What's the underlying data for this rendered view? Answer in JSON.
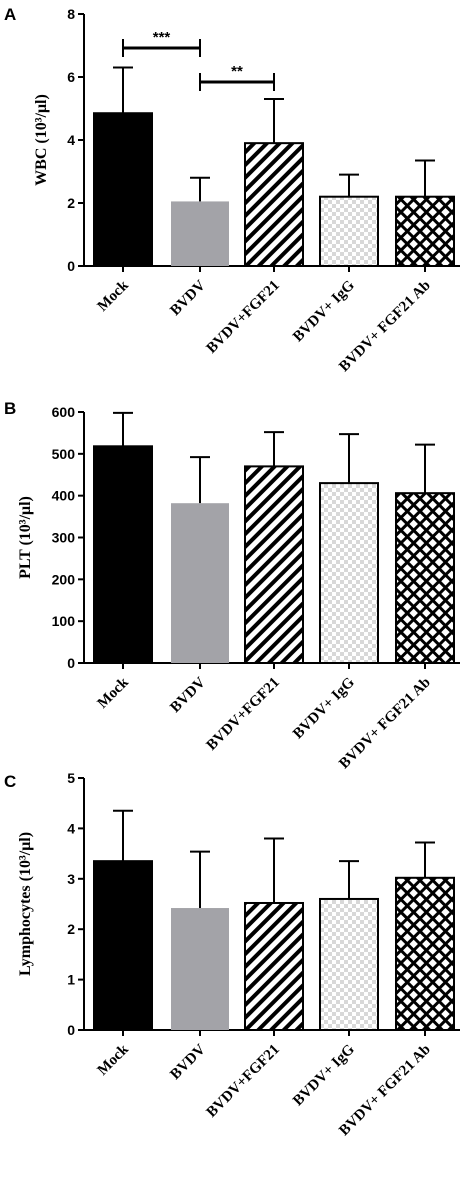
{
  "chart_data": [
    {
      "type": "bar",
      "panel": "A",
      "categories": [
        "Mock",
        "BVDV",
        "BVDV+FGF21",
        "BVDV+ IgG",
        "BVDV+ FGF21 Ab"
      ],
      "values": [
        4.85,
        2.05,
        3.9,
        2.2,
        2.2
      ],
      "errors": [
        1.45,
        0.75,
        1.4,
        0.7,
        1.15
      ],
      "ylabel": "WBC (10³/μl)",
      "ylim": [
        0,
        8
      ],
      "yticks": [
        "0",
        "2",
        "4",
        "6",
        "8"
      ],
      "significance": [
        {
          "from": 0,
          "to": 1,
          "label": "***"
        },
        {
          "from": 1,
          "to": 2,
          "label": "**"
        }
      ]
    },
    {
      "type": "bar",
      "panel": "B",
      "categories": [
        "Mock",
        "BVDV",
        "BVDV+FGF21",
        "BVDV+ IgG",
        "BVDV+ FGF21 Ab"
      ],
      "values": [
        518,
        382,
        470,
        430,
        406
      ],
      "errors": [
        80,
        110,
        82,
        117,
        116
      ],
      "ylabel": "PLT (10³/μl)",
      "ylim": [
        0,
        600
      ],
      "yticks": [
        "0",
        "100",
        "200",
        "300",
        "400",
        "500",
        "600"
      ],
      "significance": []
    },
    {
      "type": "bar",
      "panel": "C",
      "categories": [
        "Mock",
        "BVDV",
        "BVDV+FGF21",
        "BVDV+ IgG",
        "BVDV+ FGF21 Ab"
      ],
      "values": [
        3.35,
        2.42,
        2.52,
        2.6,
        3.02
      ],
      "errors": [
        1.0,
        1.12,
        1.28,
        0.75,
        0.7
      ],
      "ylabel": "Lymphocytes (10³/μl)",
      "ylim": [
        0,
        5
      ],
      "yticks": [
        "0",
        "1",
        "2",
        "3",
        "4",
        "5"
      ],
      "significance": []
    }
  ],
  "series_fills": [
    "solid-black",
    "solid-gray",
    "diagonal-hatch",
    "checkerboard",
    "crosshatch"
  ],
  "colors": {
    "black": "#000000",
    "gray": "#a3a3a8",
    "check": "#d8d8d8"
  }
}
